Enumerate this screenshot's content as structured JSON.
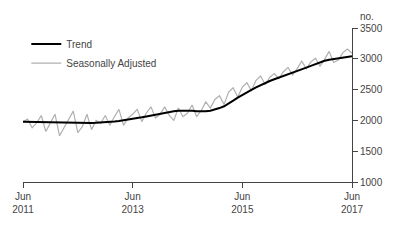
{
  "chart_data": {
    "type": "line",
    "ylabel": "no.",
    "categories": [
      "Jun\n2011",
      null,
      null,
      null,
      null,
      null,
      null,
      null,
      null,
      null,
      null,
      null,
      null,
      null,
      null,
      null,
      null,
      null,
      null,
      null,
      null,
      null,
      null,
      null,
      "Jun\n2013",
      null,
      null,
      null,
      null,
      null,
      null,
      null,
      null,
      null,
      null,
      null,
      null,
      null,
      null,
      null,
      null,
      null,
      null,
      null,
      null,
      null,
      null,
      null,
      "Jun\n2015",
      null,
      null,
      null,
      null,
      null,
      null,
      null,
      null,
      null,
      null,
      null,
      null,
      null,
      null,
      null,
      null,
      null,
      null,
      null,
      null,
      null,
      null,
      null,
      "Jun\n2017"
    ],
    "series": [
      {
        "name": "Seasonally Adjusted",
        "color": "#b0b0b0",
        "values": [
          1980,
          2020,
          1880,
          1960,
          2080,
          1820,
          1960,
          2100,
          1750,
          1880,
          2020,
          2150,
          1800,
          1900,
          2100,
          1850,
          2000,
          1950,
          2080,
          1920,
          2060,
          2180,
          1920,
          2040,
          2100,
          2180,
          1980,
          2120,
          2220,
          2040,
          2100,
          2220,
          2080,
          2000,
          2200,
          2060,
          2120,
          2250,
          2060,
          2160,
          2300,
          2200,
          2340,
          2400,
          2260,
          2460,
          2530,
          2380,
          2540,
          2610,
          2480,
          2650,
          2720,
          2580,
          2700,
          2760,
          2680,
          2790,
          2860,
          2740,
          2840,
          2960,
          2840,
          2950,
          3010,
          2880,
          2990,
          3120,
          2940,
          2980,
          3100,
          3160,
          3090
        ]
      },
      {
        "name": "Trend",
        "color": "#000000",
        "values": [
          1980,
          1978,
          1976,
          1974,
          1972,
          1970,
          1968,
          1966,
          1964,
          1962,
          1960,
          1958,
          1957,
          1957,
          1957,
          1958,
          1960,
          1963,
          1968,
          1975,
          1982,
          1990,
          2000,
          2010,
          2020,
          2035,
          2050,
          2065,
          2080,
          2095,
          2110,
          2125,
          2138,
          2148,
          2155,
          2158,
          2158,
          2155,
          2150,
          2148,
          2150,
          2158,
          2175,
          2200,
          2230,
          2270,
          2320,
          2370,
          2415,
          2455,
          2495,
          2535,
          2572,
          2607,
          2640,
          2668,
          2694,
          2718,
          2742,
          2768,
          2796,
          2826,
          2856,
          2886,
          2916,
          2944,
          2968,
          2985,
          2998,
          3008,
          3018,
          3028,
          3040
        ]
      }
    ],
    "ylim": [
      1000,
      3500
    ],
    "yticks": [
      1000,
      1500,
      2000,
      2500,
      3000,
      3500
    ],
    "grid": false,
    "legend": "upper left"
  }
}
